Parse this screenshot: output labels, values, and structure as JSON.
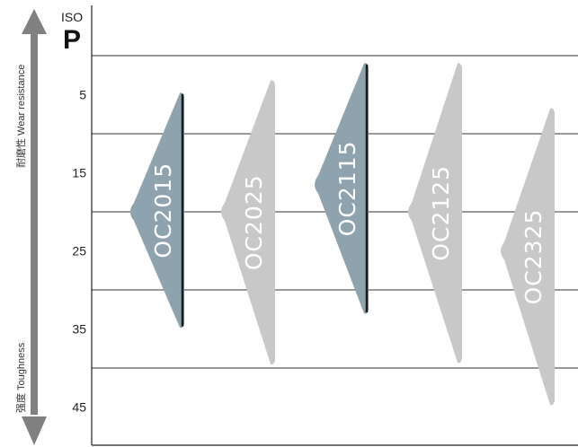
{
  "chart_data": {
    "type": "range-diagram",
    "standard_label": "ISO",
    "group_label": "P",
    "y_ticks": [
      5,
      15,
      25,
      35,
      45
    ],
    "ylim": [
      0,
      50
    ],
    "y_grid": [
      0,
      10,
      20,
      30,
      40
    ],
    "axis_top_label": "耐磨性 Wear resistance",
    "axis_bottom_label": "强度 Toughness",
    "grades": [
      {
        "name": "OC2015",
        "top": 4.8,
        "peak": 20,
        "bottom": 34.8,
        "fill": "#8fa3ae",
        "highlight": true
      },
      {
        "name": "OC2025",
        "top": 3.2,
        "peak": 20,
        "bottom": 39.5,
        "fill": "#c8c8c8",
        "highlight": false
      },
      {
        "name": "OC2115",
        "top": 1.0,
        "peak": 16.5,
        "bottom": 33.0,
        "fill": "#8fa3ae",
        "highlight": true
      },
      {
        "name": "OC2125",
        "top": 1.0,
        "peak": 20,
        "bottom": 39.3,
        "fill": "#c8c8c8",
        "highlight": false
      },
      {
        "name": "OC2325",
        "top": 6.8,
        "peak": 25,
        "bottom": 44.7,
        "fill": "#c8c8c8",
        "highlight": false
      }
    ],
    "colors": {
      "highlight": "#8fa3ae",
      "standard": "#c8c8c8",
      "axis_arrow": "#808080",
      "grid": "#333333"
    },
    "grid": true
  }
}
